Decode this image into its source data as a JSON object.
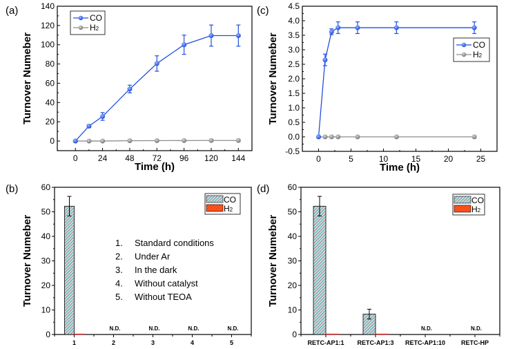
{
  "chart_data": [
    {
      "id": "a",
      "panel_label": "(a)",
      "type": "line",
      "xlabel": "Time (h)",
      "ylabel": "Turnover Numeber",
      "xlim": [
        -16,
        156
      ],
      "ylim": [
        -10,
        140
      ],
      "xticks": [
        0,
        24,
        48,
        72,
        96,
        120,
        144
      ],
      "yticks": [
        0,
        20,
        40,
        60,
        80,
        100,
        120,
        140
      ],
      "legend_position": "top-left",
      "series": [
        {
          "name": "CO",
          "color": "#1f4fe0",
          "x": [
            0,
            12,
            24,
            48,
            72,
            96,
            120,
            144
          ],
          "y": [
            0,
            15.5,
            25.5,
            54,
            80.5,
            100,
            109.5,
            109.5
          ],
          "err": [
            0,
            1.5,
            4,
            4,
            8,
            10,
            11,
            11
          ]
        },
        {
          "name": "H2",
          "color": "#8c8c8c",
          "x": [
            0,
            12,
            24,
            48,
            72,
            96,
            120,
            144
          ],
          "y": [
            0,
            0,
            0,
            0.3,
            0.4,
            0.5,
            0.6,
            0.6
          ],
          "err": [
            0,
            0,
            0,
            0,
            0,
            0,
            0,
            0
          ]
        }
      ]
    },
    {
      "id": "c",
      "panel_label": "(c)",
      "type": "line",
      "xlabel": "Time (h)",
      "ylabel": "Turnover Numeber",
      "xlim": [
        -2.5,
        27.5
      ],
      "ylim": [
        -0.5,
        4.5
      ],
      "xticks": [
        0,
        5,
        10,
        15,
        20,
        25
      ],
      "yticks": [
        -0.5,
        0.0,
        0.5,
        1.0,
        1.5,
        2.0,
        2.5,
        3.0,
        3.5,
        4.0,
        4.5
      ],
      "legend_position": "top-right",
      "series": [
        {
          "name": "CO",
          "color": "#1f4fe0",
          "x": [
            0,
            1,
            2,
            3,
            6,
            12,
            24
          ],
          "y": [
            0,
            2.65,
            3.62,
            3.76,
            3.76,
            3.76,
            3.76
          ],
          "err": [
            0,
            0.2,
            0.1,
            0.2,
            0.2,
            0.2,
            0.2
          ]
        },
        {
          "name": "H2",
          "color": "#8c8c8c",
          "x": [
            0,
            1,
            2,
            3,
            6,
            12,
            24
          ],
          "y": [
            0,
            0,
            0,
            0,
            0,
            0,
            0
          ],
          "err": [
            0,
            0,
            0,
            0,
            0,
            0,
            0
          ]
        }
      ]
    },
    {
      "id": "b",
      "panel_label": "(b)",
      "type": "bar",
      "xlabel": "",
      "ylabel": "Turnover Numeber",
      "ylim": [
        0,
        60
      ],
      "yticks": [
        0,
        10,
        20,
        30,
        40,
        50,
        60
      ],
      "categories": [
        "1",
        "2",
        "3",
        "4",
        "5"
      ],
      "legend_position": "top-right",
      "series": [
        {
          "name": "CO",
          "color": "#a6e6ea",
          "hatch": "#d62020",
          "values": [
            52.3,
            0,
            0,
            0,
            0
          ],
          "err": [
            4,
            0,
            0,
            0,
            0
          ]
        },
        {
          "name": "H2",
          "color": "#ff5a1a",
          "hatch": "#d62020",
          "values": [
            0.2,
            0,
            0,
            0,
            0
          ],
          "err": [
            0,
            0,
            0,
            0,
            0
          ]
        }
      ],
      "bar_annotations": [
        "",
        "N.D.",
        "N.D.",
        "N.D.",
        "N.D."
      ],
      "annotation_list": [
        {
          "num": "1.",
          "text": "Standard conditions"
        },
        {
          "num": "2.",
          "text": "Under Ar"
        },
        {
          "num": "3.",
          "text": "In the dark"
        },
        {
          "num": "4.",
          "text": "Without catalyst"
        },
        {
          "num": "5.",
          "text": "Without TEOA"
        }
      ]
    },
    {
      "id": "d",
      "panel_label": "(d)",
      "type": "bar",
      "xlabel": "",
      "ylabel": "Turnover Numeber",
      "ylim": [
        0,
        60
      ],
      "yticks": [
        0,
        10,
        20,
        30,
        40,
        50,
        60
      ],
      "categories": [
        "RETC-AP1:1",
        "RETC-AP1:3",
        "RETC-AP1:10",
        "RETC-HP"
      ],
      "legend_position": "top-right",
      "series": [
        {
          "name": "CO",
          "color": "#a6e6ea",
          "hatch": "#d62020",
          "values": [
            52.3,
            8.3,
            0,
            0
          ],
          "err": [
            4,
            2,
            0,
            0
          ]
        },
        {
          "name": "H2",
          "color": "#ff5a1a",
          "hatch": "#d62020",
          "values": [
            0.2,
            0.2,
            0,
            0
          ],
          "err": [
            0,
            0,
            0,
            0
          ]
        }
      ],
      "bar_annotations": [
        "",
        "",
        "N.D.",
        "N.D."
      ]
    }
  ]
}
